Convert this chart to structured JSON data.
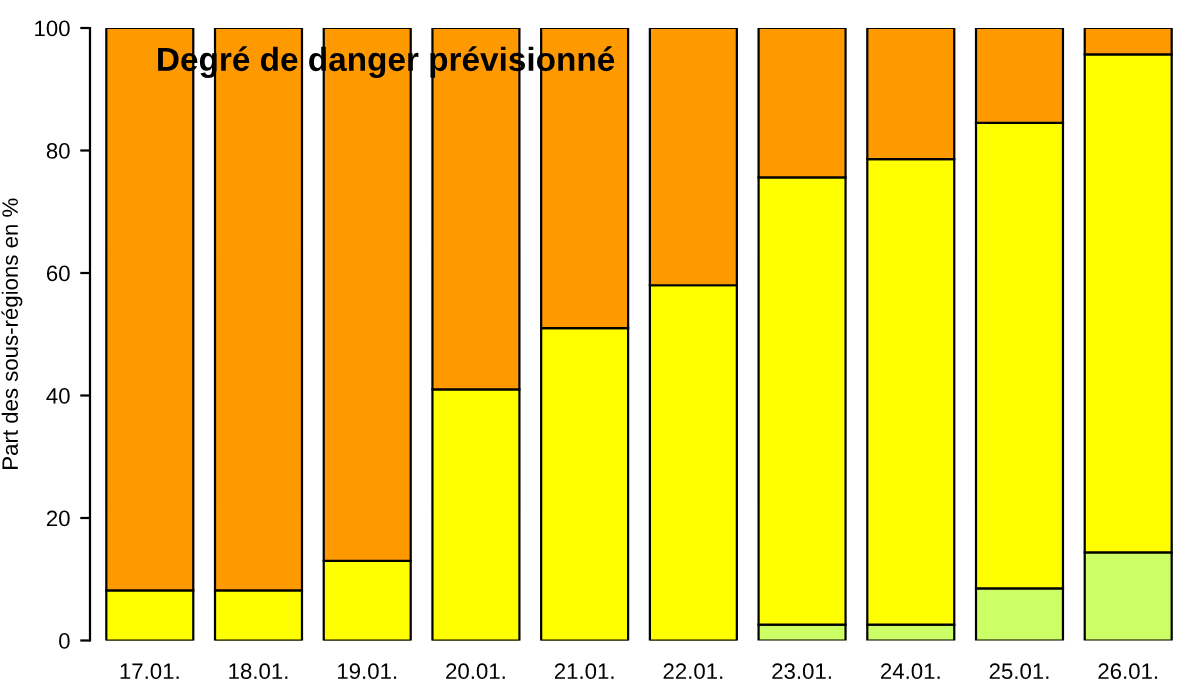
{
  "chart_data": {
    "type": "bar",
    "stacked": true,
    "title": "Degré de danger prévisionné",
    "ylabel": "Part des sous-régions en %",
    "categories": [
      "17.01.",
      "18.01.",
      "19.01.",
      "20.01.",
      "21.01.",
      "22.01.",
      "23.01.",
      "24.01.",
      "25.01.",
      "26.01."
    ],
    "series": [
      {
        "color": "#ccff66",
        "values": [
          0,
          0,
          0,
          0,
          0,
          0,
          2.6,
          2.6,
          8.5,
          14.4
        ]
      },
      {
        "color": "#ffff00",
        "values": [
          8.2,
          8.2,
          13,
          41,
          51,
          58,
          73,
          76,
          76,
          81.3
        ]
      },
      {
        "color": "#ff9900",
        "values": [
          91.8,
          91.8,
          87,
          59,
          49,
          42,
          24.4,
          21.4,
          15.5,
          4.3
        ]
      }
    ],
    "ylim": [
      0,
      100
    ],
    "yticks": [
      0,
      20,
      40,
      60,
      80,
      100
    ],
    "grid": false,
    "legend": false
  }
}
